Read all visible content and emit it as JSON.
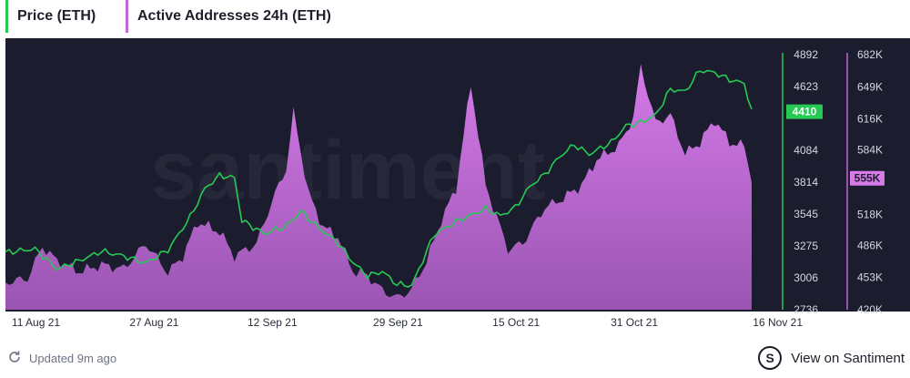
{
  "legend": {
    "price_label": "Price (ETH)",
    "addresses_label": "Active Addresses 24h (ETH)"
  },
  "footer": {
    "updated_text": "Updated 9m ago",
    "view_link": "View on Santiment"
  },
  "colors": {
    "price": "#26c953",
    "addresses": "#c267d8",
    "background": "#1b1d2e"
  },
  "watermark": "santiment",
  "chart_data": {
    "type": "line",
    "x_ticks": [
      "11 Aug 21",
      "27 Aug 21",
      "12 Sep 21",
      "29 Sep 21",
      "15 Oct 21",
      "31 Oct 21",
      "16 Nov 21"
    ],
    "x_range": [
      "2021-08-07",
      "2021-11-16"
    ],
    "y_price": {
      "ticks": [
        "4892",
        "4623",
        "4410",
        "4084",
        "3814",
        "3545",
        "3275",
        "3006",
        "2736"
      ],
      "tick_values": [
        4892,
        4623,
        4084,
        3814,
        3545,
        3275,
        3006,
        2736
      ],
      "range": [
        2736,
        4892
      ],
      "current_label": "4410",
      "current_value": 4410
    },
    "y_addresses": {
      "ticks": [
        "682K",
        "649K",
        "616K",
        "584K",
        "555K",
        "518K",
        "486K",
        "453K",
        "420K"
      ],
      "tick_values": [
        682,
        649,
        616,
        584,
        518,
        486,
        453,
        420
      ],
      "range": [
        420,
        682
      ],
      "current_label": "555K",
      "current_value": 555
    },
    "series": [
      {
        "name": "Price (ETH)",
        "color": "#26c953",
        "points": [
          [
            "2021-08-07",
            3220
          ],
          [
            "2021-08-11",
            3250
          ],
          [
            "2021-08-14",
            3080
          ],
          [
            "2021-08-17",
            3150
          ],
          [
            "2021-08-20",
            3230
          ],
          [
            "2021-08-23",
            3190
          ],
          [
            "2021-08-26",
            3130
          ],
          [
            "2021-08-29",
            3240
          ],
          [
            "2021-09-01",
            3520
          ],
          [
            "2021-09-03",
            3760
          ],
          [
            "2021-09-05",
            3870
          ],
          [
            "2021-09-07",
            3850
          ],
          [
            "2021-09-08",
            3490
          ],
          [
            "2021-09-11",
            3380
          ],
          [
            "2021-09-14",
            3440
          ],
          [
            "2021-09-16",
            3570
          ],
          [
            "2021-09-18",
            3450
          ],
          [
            "2021-09-21",
            3300
          ],
          [
            "2021-09-23",
            3140
          ],
          [
            "2021-09-25",
            3020
          ],
          [
            "2021-09-27",
            3060
          ],
          [
            "2021-09-29",
            2950
          ],
          [
            "2021-10-01",
            2940
          ],
          [
            "2021-10-04",
            3370
          ],
          [
            "2021-10-07",
            3480
          ],
          [
            "2021-10-11",
            3590
          ],
          [
            "2021-10-13",
            3530
          ],
          [
            "2021-10-15",
            3600
          ],
          [
            "2021-10-17",
            3780
          ],
          [
            "2021-10-19",
            3880
          ],
          [
            "2021-10-21",
            4030
          ],
          [
            "2021-10-23",
            4130
          ],
          [
            "2021-10-25",
            4050
          ],
          [
            "2021-10-28",
            4150
          ],
          [
            "2021-10-30",
            4290
          ],
          [
            "2021-11-01",
            4320
          ],
          [
            "2021-11-03",
            4380
          ],
          [
            "2021-11-05",
            4600
          ],
          [
            "2021-11-07",
            4580
          ],
          [
            "2021-11-09",
            4760
          ],
          [
            "2021-11-11",
            4740
          ],
          [
            "2021-11-13",
            4680
          ],
          [
            "2021-11-15",
            4650
          ],
          [
            "2021-11-16",
            4410
          ]
        ]
      },
      {
        "name": "Active Addresses 24h (ETH)",
        "color": "#c267d8",
        "points": [
          [
            "2021-08-07",
            448
          ],
          [
            "2021-08-10",
            452
          ],
          [
            "2021-08-12",
            485
          ],
          [
            "2021-08-14",
            470
          ],
          [
            "2021-08-17",
            459
          ],
          [
            "2021-08-20",
            466
          ],
          [
            "2021-08-23",
            462
          ],
          [
            "2021-08-26",
            488
          ],
          [
            "2021-08-29",
            458
          ],
          [
            "2021-08-31",
            475
          ],
          [
            "2021-09-02",
            510
          ],
          [
            "2021-09-05",
            500
          ],
          [
            "2021-09-07",
            475
          ],
          [
            "2021-09-10",
            488
          ],
          [
            "2021-09-12",
            530
          ],
          [
            "2021-09-14",
            565
          ],
          [
            "2021-09-15",
            623
          ],
          [
            "2021-09-17",
            540
          ],
          [
            "2021-09-19",
            505
          ],
          [
            "2021-09-21",
            495
          ],
          [
            "2021-09-23",
            460
          ],
          [
            "2021-09-25",
            455
          ],
          [
            "2021-09-27",
            440
          ],
          [
            "2021-09-29",
            432
          ],
          [
            "2021-10-01",
            441
          ],
          [
            "2021-10-03",
            470
          ],
          [
            "2021-10-05",
            512
          ],
          [
            "2021-10-07",
            545
          ],
          [
            "2021-10-09",
            652
          ],
          [
            "2021-10-11",
            548
          ],
          [
            "2021-10-14",
            482
          ],
          [
            "2021-10-16",
            488
          ],
          [
            "2021-10-19",
            525
          ],
          [
            "2021-10-21",
            532
          ],
          [
            "2021-10-24",
            548
          ],
          [
            "2021-10-26",
            574
          ],
          [
            "2021-10-29",
            588
          ],
          [
            "2021-10-31",
            618
          ],
          [
            "2021-11-01",
            670
          ],
          [
            "2021-11-03",
            612
          ],
          [
            "2021-11-05",
            620
          ],
          [
            "2021-11-07",
            580
          ],
          [
            "2021-11-09",
            592
          ],
          [
            "2021-11-11",
            615
          ],
          [
            "2021-11-13",
            592
          ],
          [
            "2021-11-15",
            588
          ],
          [
            "2021-11-16",
            555
          ]
        ]
      }
    ]
  }
}
